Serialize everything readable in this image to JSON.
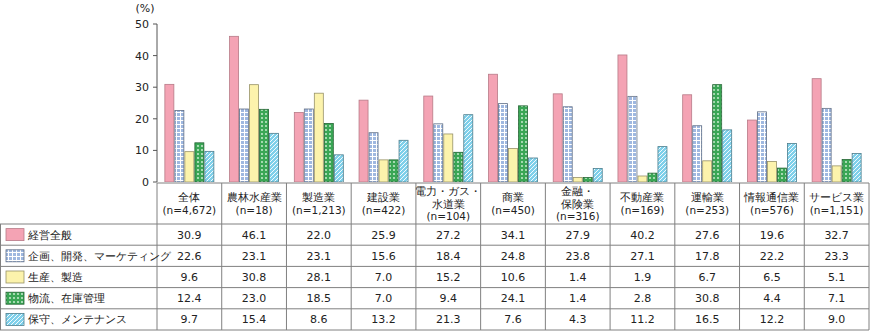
{
  "chart_data": {
    "type": "bar",
    "y_label": "(%)",
    "categories": [
      "全体\n(n=4,672)",
      "農林水産業\n(n=18)",
      "製造業\n(n=1,213)",
      "建設業\n(n=422)",
      "電力・ガス・\n水道業\n(n=104)",
      "商業\n(n=450)",
      "金融・\n保険業\n(n=316)",
      "不動産業\n(n=169)",
      "運輸業\n(n=253)",
      "情報通信業\n(n=576)",
      "サービス業\n(n=1,151)"
    ],
    "series": [
      {
        "name": "経営全般",
        "color": "#f4a3b4",
        "values": [
          30.9,
          46.1,
          22.0,
          25.9,
          27.2,
          34.1,
          27.9,
          40.2,
          27.6,
          19.6,
          32.7
        ],
        "value_labels": [
          "30.9",
          "46.1",
          "22.0",
          "25.9",
          "27.2",
          "34.1",
          "27.9",
          "40.2",
          "27.6",
          "19.6",
          "32.7"
        ]
      },
      {
        "name": "企画、開発、マーケティング",
        "color": "#9fb8e0",
        "values": [
          22.6,
          23.1,
          23.1,
          15.6,
          18.4,
          24.8,
          23.8,
          27.1,
          17.8,
          22.2,
          23.3
        ],
        "value_labels": [
          "22.6",
          "23.1",
          "23.1",
          "15.6",
          "18.4",
          "24.8",
          "23.8",
          "27.1",
          "17.8",
          "22.2",
          "23.3"
        ]
      },
      {
        "name": "生産、製造",
        "color": "#fcf3ac",
        "values": [
          9.6,
          30.8,
          28.1,
          7.0,
          15.2,
          10.6,
          1.4,
          1.9,
          6.7,
          6.5,
          5.1
        ],
        "value_labels": [
          "9.6",
          "30.8",
          "28.1",
          "7.0",
          "15.2",
          "10.6",
          "1.4",
          "1.9",
          "6.7",
          "6.5",
          "5.1"
        ]
      },
      {
        "name": "物流、在庫管理",
        "color": "#3aa655",
        "values": [
          12.4,
          23.0,
          18.5,
          7.0,
          9.4,
          24.1,
          1.4,
          2.8,
          30.8,
          4.4,
          7.1
        ],
        "value_labels": [
          "12.4",
          "23.0",
          "18.5",
          "7.0",
          "9.4",
          "24.1",
          "1.4",
          "2.8",
          "30.8",
          "4.4",
          "7.1"
        ]
      },
      {
        "name": "保守、メンテナンス",
        "color": "#7fd0ea",
        "values": [
          9.7,
          15.4,
          8.6,
          13.2,
          21.3,
          7.6,
          4.3,
          11.2,
          16.5,
          12.2,
          9.0
        ],
        "value_labels": [
          "9.7",
          "15.4",
          "8.6",
          "13.2",
          "21.3",
          "7.6",
          "4.3",
          "11.2",
          "16.5",
          "12.2",
          "9.0"
        ]
      }
    ],
    "ylim": [
      0,
      50
    ],
    "yticks": [
      0,
      10,
      20,
      30,
      40,
      50
    ],
    "grid": false
  }
}
